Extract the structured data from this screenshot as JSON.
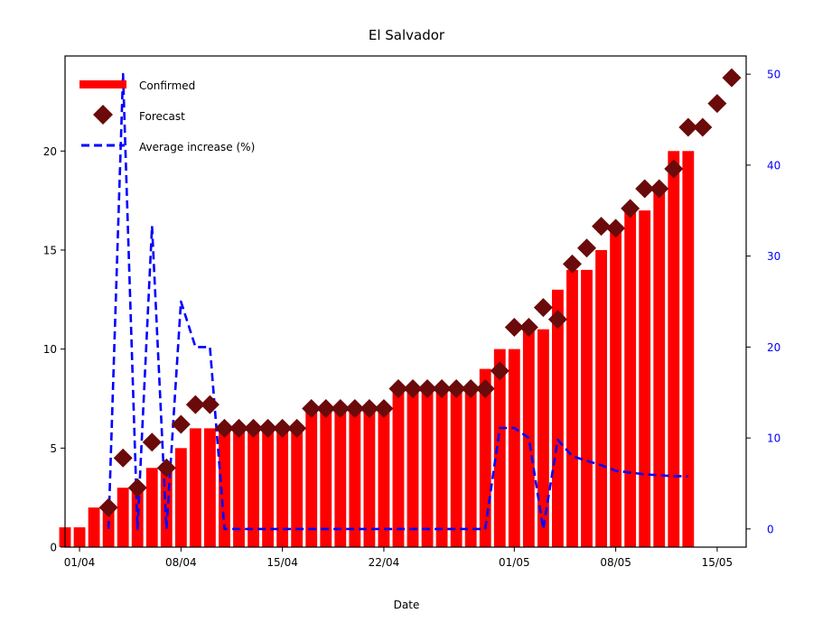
{
  "chart_data": {
    "type": "bar",
    "title": "El Salvador",
    "xlabel": "Date",
    "ylabel": "",
    "ylim": [
      0,
      24.8
    ],
    "y2lim": [
      -2,
      52
    ],
    "xlim": [
      -1,
      46
    ],
    "x_ticks": [
      {
        "day": 0,
        "label": "01/04"
      },
      {
        "day": 7,
        "label": "08/04"
      },
      {
        "day": 14,
        "label": "15/04"
      },
      {
        "day": 21,
        "label": "22/04"
      },
      {
        "day": 30,
        "label": "01/05"
      },
      {
        "day": 37,
        "label": "08/05"
      },
      {
        "day": 44,
        "label": "15/05"
      }
    ],
    "y_ticks": [
      0,
      5,
      10,
      15,
      20
    ],
    "y2_ticks": [
      0,
      10,
      20,
      30,
      40,
      50
    ],
    "legend": {
      "position": "top-left",
      "confirmed": "Confirmed",
      "forecast": "Forecast",
      "average": "Average increase (%)"
    },
    "colors": {
      "confirmed": "#ff0000",
      "forecast": "#6b0a0a",
      "average": "#0000ff"
    },
    "series": [
      {
        "name": "Confirmed",
        "type": "bar",
        "x": [
          -1,
          0,
          1,
          2,
          3,
          4,
          5,
          6,
          7,
          8,
          9,
          10,
          11,
          12,
          13,
          14,
          15,
          16,
          17,
          18,
          19,
          20,
          21,
          22,
          23,
          24,
          25,
          26,
          27,
          28,
          29,
          30,
          31,
          32,
          33,
          34,
          35,
          36,
          37,
          38,
          39,
          40,
          41,
          42
        ],
        "values": [
          1,
          1,
          2,
          2,
          3,
          3,
          4,
          4,
          5,
          6,
          6,
          6,
          6,
          6,
          6,
          6,
          6,
          7,
          7,
          7,
          7,
          7,
          7,
          8,
          8,
          8,
          8,
          8,
          8,
          9,
          10,
          10,
          11,
          11,
          13,
          14,
          14,
          15,
          16,
          17,
          17,
          18,
          20,
          20
        ]
      },
      {
        "name": "Forecast",
        "type": "scatter",
        "x": [
          2,
          3,
          4,
          5,
          6,
          7,
          8,
          9,
          10,
          11,
          12,
          13,
          14,
          15,
          16,
          17,
          18,
          19,
          20,
          21,
          22,
          23,
          24,
          25,
          26,
          27,
          28,
          29,
          30,
          31,
          32,
          33,
          34,
          35,
          36,
          37,
          38,
          39,
          40,
          41,
          42,
          43,
          44,
          45
        ],
        "values": [
          2,
          4.5,
          3,
          5.3,
          4,
          6.2,
          7.2,
          7.2,
          6,
          6,
          6,
          6,
          6,
          6,
          7,
          7,
          7,
          7,
          7,
          7,
          8,
          8,
          8,
          8,
          8,
          8,
          8,
          8.9,
          11.1,
          11.1,
          12.1,
          11.5,
          14.3,
          15.1,
          16.2,
          16.1,
          17.1,
          18.1,
          18.1,
          19.1,
          21.2,
          21.2,
          22.4,
          23.7
        ]
      },
      {
        "name": "Average increase (%)",
        "type": "line",
        "axis": "right",
        "x": [
          2,
          3,
          4,
          5,
          6,
          7,
          8,
          9,
          10,
          11,
          12,
          13,
          14,
          15,
          16,
          17,
          18,
          19,
          20,
          21,
          22,
          23,
          24,
          25,
          26,
          27,
          28,
          29,
          30,
          31,
          32,
          33,
          34,
          35,
          36,
          37,
          38,
          39,
          40,
          41,
          42
        ],
        "values": [
          0,
          50,
          0,
          33.3,
          0,
          25,
          20,
          20,
          0,
          0,
          0,
          0,
          0,
          0,
          0,
          0,
          0,
          0,
          0,
          0,
          0,
          0,
          0,
          0,
          0,
          0,
          0,
          11.1,
          11.1,
          10,
          0,
          9.8,
          8,
          7.5,
          7,
          6.4,
          6.2,
          6,
          5.9,
          5.8,
          5.8
        ]
      }
    ]
  }
}
